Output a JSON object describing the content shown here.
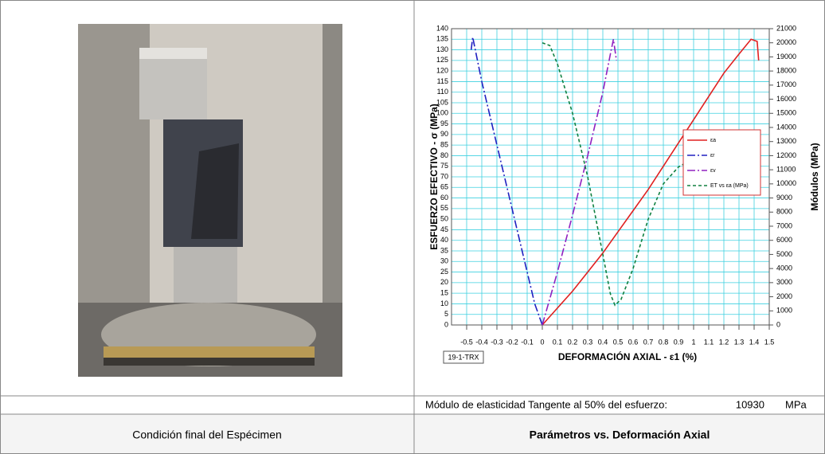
{
  "photo_cell": {
    "caption": "Condición final del Espécimen"
  },
  "modulus_row": {
    "label": "Módulo de elasticidad Tangente al 50% del esfuerzo:",
    "value": 10930,
    "unit": "MPa"
  },
  "chart_caption": "Parámetros vs. Deformación Axial",
  "chart_data": {
    "type": "line",
    "ylabel": "ESFUERZO EFECTIVO - σ (MPa)",
    "y2label": "Módulos (MPa)",
    "xlabel": "DEFORMACIÓN AXIAL - ε1 (%)",
    "sample_tag": "19-1-TRX",
    "xlim": [
      -0.6,
      1.5
    ],
    "xticks": [
      -0.5,
      -0.4,
      -0.3,
      -0.2,
      -0.1,
      0,
      0.1,
      0.2,
      0.3,
      0.4,
      0.5,
      0.6,
      0.7,
      0.8,
      0.9,
      1,
      1.1,
      1.2,
      1.3,
      1.4,
      1.5
    ],
    "ylim": [
      0,
      140
    ],
    "yticks": [
      0,
      5,
      10,
      15,
      20,
      25,
      30,
      35,
      40,
      45,
      50,
      55,
      60,
      65,
      70,
      75,
      80,
      85,
      90,
      95,
      100,
      105,
      110,
      115,
      120,
      125,
      130,
      135,
      140
    ],
    "y2lim": [
      0,
      21000
    ],
    "y2ticks": [
      0,
      1000,
      2000,
      3000,
      4000,
      5000,
      6000,
      7000,
      8000,
      9000,
      10000,
      11000,
      12000,
      13000,
      14000,
      15000,
      16000,
      17000,
      18000,
      19000,
      20000,
      21000
    ],
    "grid": true,
    "legend": "right",
    "series": [
      {
        "name": "εa",
        "color": "#e02020",
        "dash": "none",
        "x": [
          0,
          0.1,
          0.2,
          0.3,
          0.4,
          0.5,
          0.6,
          0.7,
          0.8,
          0.9,
          1.0,
          1.1,
          1.2,
          1.3,
          1.38,
          1.42,
          1.43
        ],
        "values": [
          0,
          8,
          16,
          25,
          34,
          44,
          54,
          64,
          75,
          86,
          97,
          108,
          119,
          128,
          135,
          134,
          125
        ]
      },
      {
        "name": "εr",
        "color": "#2020c0",
        "dash": "10 3 2 3",
        "x": [
          -0.47,
          -0.46,
          -0.4,
          -0.3,
          -0.2,
          -0.1,
          -0.05,
          0
        ],
        "values": [
          130,
          136,
          115,
          85,
          55,
          25,
          10,
          0
        ]
      },
      {
        "name": "εv",
        "color": "#9020c0",
        "dash": "10 3 2 3",
        "x": [
          0,
          0.1,
          0.2,
          0.3,
          0.4,
          0.45,
          0.47,
          0.49
        ],
        "values": [
          0,
          25,
          52,
          80,
          110,
          128,
          135,
          125
        ]
      },
      {
        "name": "ET vs εa (MPa)",
        "color": "#108040",
        "dash": "4 3",
        "axis": "y2",
        "x": [
          0,
          0.05,
          0.1,
          0.2,
          0.3,
          0.4,
          0.45,
          0.48,
          0.52,
          0.6,
          0.7,
          0.8,
          0.9,
          0.95
        ],
        "values": [
          20000,
          19800,
          18500,
          15000,
          10500,
          5000,
          2200,
          1400,
          1800,
          4000,
          7500,
          10000,
          11200,
          11500
        ]
      }
    ]
  }
}
